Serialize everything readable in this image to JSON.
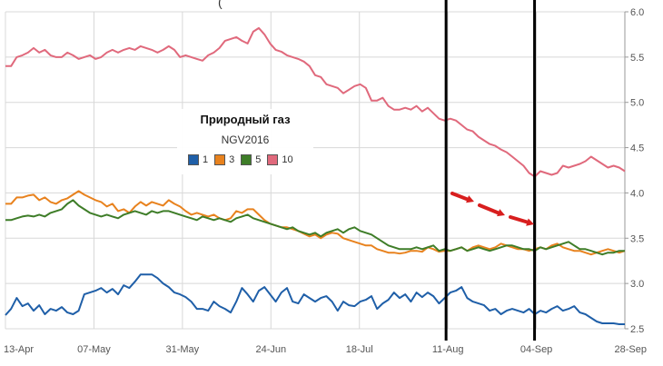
{
  "chart_data": {
    "type": "line",
    "title": "Природный газ",
    "subtitle": "NGV2016",
    "clipped_top_text": "(",
    "x_labels": [
      "13-Apr",
      "07-May",
      "31-May",
      "24-Jun",
      "18-Jul",
      "11-Aug",
      "04-Sep",
      "28-Sep"
    ],
    "y_ticks": [
      "2.5",
      "3.0",
      "3.5",
      "4.0",
      "4.5",
      "5.0",
      "5.5",
      "6.0"
    ],
    "ylim": [
      2.5,
      6.0
    ],
    "grid": true,
    "legend_placement": "center-left",
    "series": [
      {
        "name": "1",
        "color": "#1f5fa8",
        "values": [
          2.65,
          2.72,
          2.84,
          2.75,
          2.78,
          2.7,
          2.76,
          2.66,
          2.72,
          2.7,
          2.74,
          2.68,
          2.66,
          2.7,
          2.88,
          2.9,
          2.92,
          2.95,
          2.9,
          2.94,
          2.88,
          2.98,
          2.95,
          3.02,
          3.1,
          3.1,
          3.1,
          3.06,
          3.0,
          2.96,
          2.9,
          2.88,
          2.85,
          2.8,
          2.72,
          2.72,
          2.7,
          2.8,
          2.75,
          2.72,
          2.68,
          2.8,
          2.95,
          2.88,
          2.8,
          2.92,
          2.96,
          2.88,
          2.8,
          2.9,
          2.95,
          2.8,
          2.78,
          2.88,
          2.84,
          2.8,
          2.84,
          2.86,
          2.8,
          2.7,
          2.8,
          2.76,
          2.75,
          2.8,
          2.82,
          2.86,
          2.72,
          2.78,
          2.82,
          2.9,
          2.84,
          2.88,
          2.8,
          2.9,
          2.85,
          2.9,
          2.86,
          2.78,
          2.84,
          2.9,
          2.92,
          2.96,
          2.84,
          2.8,
          2.78,
          2.76,
          2.7,
          2.72,
          2.66,
          2.7,
          2.72,
          2.7,
          2.68,
          2.72,
          2.66,
          2.7,
          2.68,
          2.72,
          2.75,
          2.7,
          2.72,
          2.75,
          2.68,
          2.66,
          2.62,
          2.58,
          2.56,
          2.56,
          2.56,
          2.55,
          2.55
        ]
      },
      {
        "name": "3",
        "color": "#e8821e",
        "values": [
          3.88,
          3.88,
          3.95,
          3.95,
          3.97,
          3.98,
          3.92,
          3.95,
          3.9,
          3.88,
          3.92,
          3.94,
          3.98,
          4.02,
          3.98,
          3.95,
          3.92,
          3.9,
          3.85,
          3.88,
          3.8,
          3.82,
          3.78,
          3.85,
          3.9,
          3.86,
          3.9,
          3.88,
          3.86,
          3.92,
          3.88,
          3.85,
          3.8,
          3.76,
          3.78,
          3.76,
          3.74,
          3.76,
          3.72,
          3.7,
          3.72,
          3.8,
          3.78,
          3.82,
          3.82,
          3.76,
          3.7,
          3.66,
          3.64,
          3.62,
          3.62,
          3.6,
          3.58,
          3.55,
          3.52,
          3.54,
          3.5,
          3.54,
          3.56,
          3.55,
          3.5,
          3.48,
          3.46,
          3.44,
          3.42,
          3.42,
          3.38,
          3.36,
          3.34,
          3.34,
          3.33,
          3.34,
          3.36,
          3.36,
          3.35,
          3.4,
          3.38,
          3.35,
          3.36,
          3.36,
          3.38,
          3.4,
          3.36,
          3.4,
          3.42,
          3.4,
          3.38,
          3.4,
          3.44,
          3.42,
          3.4,
          3.38,
          3.38,
          3.36,
          3.38,
          3.4,
          3.38,
          3.42,
          3.44,
          3.4,
          3.38,
          3.36,
          3.36,
          3.34,
          3.32,
          3.34,
          3.36,
          3.38,
          3.36,
          3.34,
          3.36
        ]
      },
      {
        "name": "5",
        "color": "#3e7d28",
        "values": [
          3.7,
          3.7,
          3.72,
          3.74,
          3.75,
          3.74,
          3.76,
          3.74,
          3.78,
          3.8,
          3.82,
          3.88,
          3.92,
          3.86,
          3.82,
          3.78,
          3.76,
          3.74,
          3.76,
          3.74,
          3.72,
          3.76,
          3.78,
          3.8,
          3.78,
          3.76,
          3.8,
          3.78,
          3.8,
          3.8,
          3.78,
          3.76,
          3.74,
          3.72,
          3.7,
          3.74,
          3.72,
          3.7,
          3.72,
          3.7,
          3.68,
          3.72,
          3.74,
          3.76,
          3.72,
          3.7,
          3.68,
          3.66,
          3.64,
          3.62,
          3.6,
          3.62,
          3.58,
          3.56,
          3.54,
          3.56,
          3.52,
          3.56,
          3.58,
          3.6,
          3.56,
          3.6,
          3.62,
          3.58,
          3.56,
          3.54,
          3.5,
          3.46,
          3.42,
          3.4,
          3.38,
          3.38,
          3.38,
          3.4,
          3.38,
          3.4,
          3.42,
          3.36,
          3.38,
          3.36,
          3.38,
          3.4,
          3.36,
          3.38,
          3.4,
          3.38,
          3.36,
          3.38,
          3.4,
          3.42,
          3.42,
          3.4,
          3.38,
          3.38,
          3.36,
          3.4,
          3.38,
          3.4,
          3.42,
          3.44,
          3.46,
          3.42,
          3.38,
          3.38,
          3.36,
          3.34,
          3.32,
          3.34,
          3.34,
          3.36,
          3.36
        ]
      },
      {
        "name": "10",
        "color": "#e0697c",
        "values": [
          5.4,
          5.4,
          5.5,
          5.52,
          5.55,
          5.6,
          5.55,
          5.58,
          5.52,
          5.5,
          5.5,
          5.55,
          5.52,
          5.48,
          5.5,
          5.52,
          5.48,
          5.5,
          5.55,
          5.58,
          5.55,
          5.58,
          5.6,
          5.58,
          5.62,
          5.6,
          5.58,
          5.55,
          5.58,
          5.62,
          5.58,
          5.5,
          5.52,
          5.5,
          5.48,
          5.46,
          5.52,
          5.55,
          5.6,
          5.68,
          5.7,
          5.72,
          5.68,
          5.65,
          5.78,
          5.82,
          5.75,
          5.65,
          5.58,
          5.56,
          5.52,
          5.5,
          5.48,
          5.45,
          5.4,
          5.3,
          5.28,
          5.2,
          5.18,
          5.16,
          5.1,
          5.14,
          5.18,
          5.2,
          5.16,
          5.02,
          5.02,
          5.05,
          4.96,
          4.92,
          4.92,
          4.94,
          4.92,
          4.96,
          4.9,
          4.94,
          4.88,
          4.82,
          4.8,
          4.82,
          4.8,
          4.75,
          4.7,
          4.68,
          4.62,
          4.58,
          4.54,
          4.52,
          4.48,
          4.45,
          4.4,
          4.35,
          4.3,
          4.22,
          4.18,
          4.24,
          4.22,
          4.2,
          4.22,
          4.3,
          4.28,
          4.3,
          4.32,
          4.35,
          4.4,
          4.36,
          4.32,
          4.28,
          4.3,
          4.28,
          4.24
        ]
      }
    ],
    "annotations": {
      "vertical_lines_at": [
        "11-Aug",
        "04-Sep"
      ],
      "arrow_color": "#d81e1e"
    }
  }
}
